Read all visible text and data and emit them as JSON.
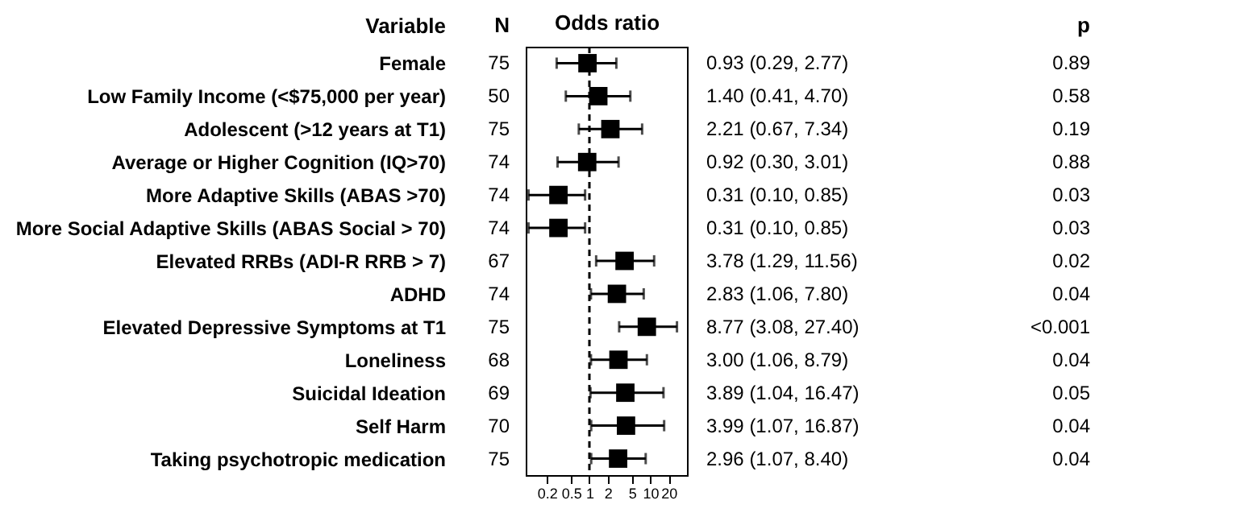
{
  "chart_data": {
    "type": "scatter",
    "orientation": "horizontal",
    "ylabel": "Variable",
    "xlabel": "Odds ratio",
    "log": "x",
    "grid": false,
    "marker": "square",
    "color": "#000000",
    "categories": [
      "Female",
      "Low Family Income (<$75,000 per year)",
      "Adolescent (>12 years at T1)",
      "Average or Higher Cognition (IQ>70)",
      "More Adaptive Skills (ABAS >70)",
      "More Social Adaptive Skills (ABAS Social > 70)",
      "Elevated RRBs (ADI-R RRB > 7)",
      "ADHD",
      "Elevated Depressive Symptoms at T1",
      "Loneliness",
      "Suicidal Ideation",
      "Self Harm",
      "Taking psychotropic medication"
    ],
    "values": [
      0.93,
      1.4,
      2.21,
      0.92,
      0.31,
      0.31,
      3.78,
      2.83,
      8.77,
      3.0,
      3.89,
      3.99,
      2.96
    ],
    "errors": [
      [
        0.29,
        2.77
      ],
      [
        0.41,
        4.7
      ],
      [
        0.67,
        7.34
      ],
      [
        0.3,
        3.01
      ],
      [
        0.1,
        0.85
      ],
      [
        0.1,
        0.85
      ],
      [
        1.29,
        11.56
      ],
      [
        1.06,
        7.8
      ],
      [
        3.08,
        27.4
      ],
      [
        1.06,
        8.79
      ],
      [
        1.04,
        16.47
      ],
      [
        1.07,
        16.87
      ],
      [
        1.07,
        8.4
      ]
    ],
    "xlim": [
      0.09,
      40
    ],
    "xticks": [
      0.2,
      0.5,
      1,
      2,
      5,
      10,
      20
    ],
    "ref_lines": [
      {
        "axis": "x",
        "value": 1,
        "line_style": "dashed"
      }
    ],
    "annotations": [
      "N",
      "p",
      "75",
      "50",
      "75",
      "74",
      "74",
      "74",
      "67",
      "74",
      "75",
      "68",
      "69",
      "70",
      "75",
      "0.93 (0.29, 2.77)",
      "1.40 (0.41, 4.70)",
      "2.21 (0.67, 7.34)",
      "0.92 (0.30, 3.01)",
      "0.31 (0.10, 0.85)",
      "0.31 (0.10, 0.85)",
      "3.78 (1.29, 11.56)",
      "2.83 (1.06, 7.80)",
      "8.77 (3.08, 27.40)",
      "3.00 (1.06, 8.79)",
      "3.89 (1.04, 16.47)",
      "3.99 (1.07, 16.87)",
      "2.96 (1.07, 8.40)",
      "0.89",
      "0.58",
      "0.19",
      "0.88",
      "0.03",
      "0.03",
      "0.02",
      "0.04",
      "<0.001",
      "0.04",
      "0.05",
      "0.04",
      "0.04"
    ]
  }
}
